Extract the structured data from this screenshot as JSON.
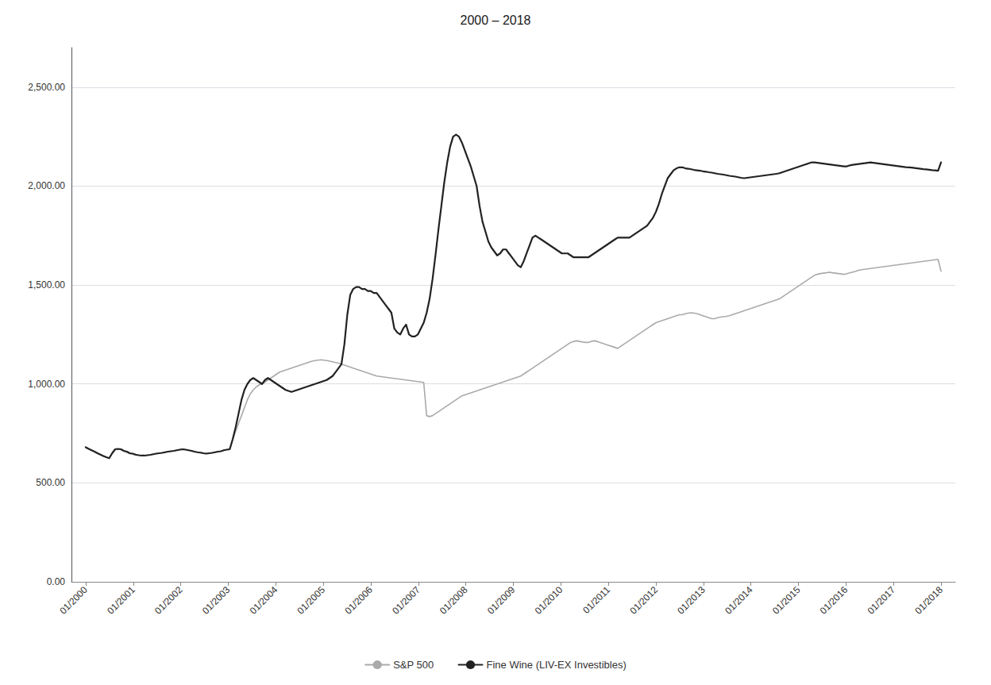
{
  "chart_data": {
    "type": "line",
    "title": "2000 – 2018",
    "x": [
      2000,
      2000.0619,
      2000.1237,
      2000.1856,
      2000.2474,
      2000.3093,
      2000.3711,
      2000.433,
      2000.4948,
      2000.5567,
      2000.6186,
      2000.6804,
      2000.7423,
      2000.8041,
      2000.866,
      2000.9278,
      2000.9897,
      2001.0515,
      2001.1134,
      2001.1753,
      2001.2371,
      2001.299,
      2001.3608,
      2001.4227,
      2001.4845,
      2001.5464,
      2001.6082,
      2001.6701,
      2001.732,
      2001.7938,
      2001.8557,
      2001.9175,
      2001.9794,
      2002.0412,
      2002.1031,
      2002.1649,
      2002.2268,
      2002.2887,
      2002.3505,
      2002.4124,
      2002.4742,
      2002.5361,
      2002.5979,
      2002.6598,
      2002.7216,
      2002.7835,
      2002.8454,
      2002.9072,
      2002.9691,
      2003.0309,
      2003.0928,
      2003.1546,
      2003.2165,
      2003.2784,
      2003.3402,
      2003.4021,
      2003.4639,
      2003.5258,
      2003.5876,
      2003.6495,
      2003.7113,
      2003.7732,
      2003.8351,
      2003.8969,
      2003.9588,
      2004.0206,
      2004.0825,
      2004.1443,
      2004.2062,
      2004.268,
      2004.3299,
      2004.3918,
      2004.4536,
      2004.5155,
      2004.5773,
      2004.6392,
      2004.701,
      2004.7629,
      2004.8247,
      2004.8866,
      2004.9485,
      2005.0103,
      2005.0722,
      2005.134,
      2005.1959,
      2005.2577,
      2005.3196,
      2005.3814,
      2005.4433,
      2005.5052,
      2005.567,
      2005.6289,
      2005.6907,
      2005.7526,
      2005.8144,
      2005.8763,
      2005.9381,
      2006,
      2006.0619,
      2006.1237,
      2006.1856,
      2006.2474,
      2006.3093,
      2006.3711,
      2006.433,
      2006.4948,
      2006.5567,
      2006.6186,
      2006.6804,
      2006.7423,
      2006.8041,
      2006.866,
      2006.9278,
      2006.9897,
      2007.0515,
      2007.1134,
      2007.1753,
      2007.2371,
      2007.299,
      2007.3608,
      2007.4227,
      2007.4845,
      2007.5464,
      2007.6082,
      2007.6701,
      2007.732,
      2007.7938,
      2007.8557,
      2007.9175,
      2007.9794,
      2008.0412,
      2008.1031,
      2008.1649,
      2008.2268,
      2008.2887,
      2008.3505,
      2008.4124,
      2008.4742,
      2008.5361,
      2008.5979,
      2008.6598,
      2008.7216,
      2008.7835,
      2008.8454,
      2008.9072,
      2008.9691,
      2009.0309,
      2009.0928,
      2009.1546,
      2009.2165,
      2009.2784,
      2009.3402,
      2009.4021,
      2009.4639,
      2009.5258,
      2009.5876,
      2009.6495,
      2009.7113,
      2009.7732,
      2009.8351,
      2009.8969,
      2009.9588,
      2010.0206,
      2010.0825,
      2010.1443,
      2010.2062,
      2010.268,
      2010.3299,
      2010.3918,
      2010.4536,
      2010.5155,
      2010.5773,
      2010.6392,
      2010.701,
      2010.7629,
      2010.8247,
      2010.8866,
      2010.9485,
      2011.0103,
      2011.0722,
      2011.134,
      2011.1959,
      2011.2577,
      2011.3196,
      2011.3814,
      2011.4433,
      2011.5052,
      2011.567,
      2011.6289,
      2011.6907,
      2011.7526,
      2011.8144,
      2011.8763,
      2011.9381,
      2012,
      2012.0619,
      2012.1237,
      2012.1856,
      2012.2474,
      2012.3093,
      2012.3711,
      2012.433,
      2012.4948,
      2012.5567,
      2012.6186,
      2012.6804,
      2012.7423,
      2012.8041,
      2012.866,
      2012.9278,
      2012.9897,
      2013.0515,
      2013.1134,
      2013.1753,
      2013.2371,
      2013.299,
      2013.3608,
      2013.4227,
      2013.4845,
      2013.5464,
      2013.6082,
      2013.6701,
      2013.732,
      2013.7938,
      2013.8557,
      2013.9175,
      2013.9794,
      2014.0412,
      2014.1031,
      2014.1649,
      2014.2268,
      2014.2887,
      2014.3505,
      2014.4124,
      2014.4742,
      2014.5361,
      2014.5979,
      2014.6598,
      2014.7216,
      2014.7835,
      2014.8454,
      2014.9072,
      2014.9691,
      2015.0309,
      2015.0928,
      2015.1546,
      2015.2165,
      2015.2784,
      2015.3402,
      2015.4021,
      2015.4639,
      2015.5258,
      2015.5876,
      2015.6495,
      2015.7113,
      2015.7732,
      2015.8351,
      2015.8969,
      2015.9588,
      2016.0206,
      2016.0825,
      2016.1443,
      2016.2062,
      2016.268,
      2016.3299,
      2016.3918,
      2016.4536,
      2016.5155,
      2016.5773,
      2016.6392,
      2016.701,
      2016.7629,
      2016.8247,
      2016.8866,
      2016.9485,
      2017.0103,
      2017.0722,
      2017.134,
      2017.1959,
      2017.2577,
      2017.3196,
      2017.3814,
      2017.4433,
      2017.5052,
      2017.567,
      2017.6289,
      2017.6907,
      2017.7526,
      2017.8144,
      2017.8763,
      2017.9381,
      2018
    ],
    "xlim": [
      1999.7,
      2018.3
    ],
    "xticks": [
      {
        "value": 2000,
        "label": "01/2000"
      },
      {
        "value": 2001,
        "label": "01/2001"
      },
      {
        "value": 2002,
        "label": "01/2002"
      },
      {
        "value": 2003,
        "label": "01/2003"
      },
      {
        "value": 2004,
        "label": "01/2004"
      },
      {
        "value": 2005,
        "label": "01/2005"
      },
      {
        "value": 2006,
        "label": "01/2006"
      },
      {
        "value": 2007,
        "label": "01/2007"
      },
      {
        "value": 2008,
        "label": "01/2008"
      },
      {
        "value": 2009,
        "label": "01/2009"
      },
      {
        "value": 2010,
        "label": "01/2010"
      },
      {
        "value": 2011,
        "label": "01/2011"
      },
      {
        "value": 2012,
        "label": "01/2012"
      },
      {
        "value": 2013,
        "label": "01/2013"
      },
      {
        "value": 2014,
        "label": "01/2014"
      },
      {
        "value": 2015,
        "label": "01/2015"
      },
      {
        "value": 2016,
        "label": "01/2016"
      },
      {
        "value": 2017,
        "label": "01/2017"
      },
      {
        "value": 2018,
        "label": "01/2018"
      }
    ],
    "ylim": [
      0,
      2700
    ],
    "yticks": [
      {
        "value": 0,
        "label": "0.00"
      },
      {
        "value": 500,
        "label": "500.00"
      },
      {
        "value": 1000,
        "label": "1,000.00"
      },
      {
        "value": 1500,
        "label": "1,500.00"
      },
      {
        "value": 2000,
        "label": "2,000.00"
      },
      {
        "value": 2500,
        "label": "2,500.00"
      }
    ],
    "grid": true,
    "legend": "bottom",
    "series": [
      {
        "name": "S&P 500",
        "color": "#aaaaaa",
        "values": [
          680,
          672,
          665,
          658,
          650,
          643,
          636,
          630,
          625,
          650,
          668,
          670,
          668,
          660,
          655,
          648,
          645,
          640,
          640,
          638,
          638,
          640,
          642,
          645,
          648,
          650,
          652,
          655,
          658,
          660,
          662,
          665,
          668,
          670,
          668,
          665,
          662,
          658,
          655,
          653,
          650,
          648,
          650,
          652,
          655,
          658,
          660,
          665,
          668,
          670,
          720,
          760,
          800,
          840,
          880,
          920,
          950,
          970,
          985,
          995,
          1000,
          1010,
          1020,
          1030,
          1040,
          1050,
          1060,
          1065,
          1070,
          1075,
          1080,
          1085,
          1090,
          1095,
          1100,
          1105,
          1110,
          1115,
          1118,
          1120,
          1122,
          1120,
          1118,
          1115,
          1112,
          1108,
          1105,
          1100,
          1095,
          1090,
          1085,
          1080,
          1075,
          1070,
          1065,
          1060,
          1055,
          1050,
          1045,
          1040,
          1038,
          1036,
          1034,
          1032,
          1030,
          1028,
          1026,
          1024,
          1022,
          1020,
          1018,
          1016,
          1014,
          1012,
          1010,
          1008,
          840,
          835,
          840,
          850,
          860,
          870,
          880,
          890,
          900,
          910,
          920,
          930,
          940,
          945,
          950,
          955,
          960,
          965,
          970,
          975,
          980,
          985,
          990,
          995,
          1000,
          1005,
          1010,
          1015,
          1020,
          1025,
          1030,
          1035,
          1040,
          1050,
          1060,
          1070,
          1080,
          1090,
          1100,
          1110,
          1120,
          1130,
          1140,
          1150,
          1160,
          1170,
          1180,
          1190,
          1200,
          1210,
          1215,
          1218,
          1215,
          1212,
          1210,
          1210,
          1215,
          1218,
          1215,
          1210,
          1205,
          1200,
          1195,
          1190,
          1185,
          1180,
          1190,
          1200,
          1210,
          1220,
          1230,
          1240,
          1250,
          1260,
          1270,
          1280,
          1290,
          1300,
          1310,
          1315,
          1320,
          1325,
          1330,
          1335,
          1340,
          1345,
          1350,
          1350,
          1355,
          1358,
          1360,
          1358,
          1355,
          1350,
          1345,
          1340,
          1335,
          1330,
          1330,
          1335,
          1338,
          1340,
          1342,
          1345,
          1350,
          1355,
          1360,
          1365,
          1370,
          1375,
          1380,
          1385,
          1390,
          1395,
          1400,
          1405,
          1410,
          1415,
          1420,
          1425,
          1430,
          1440,
          1450,
          1460,
          1470,
          1480,
          1490,
          1500,
          1510,
          1520,
          1530,
          1540,
          1550,
          1555,
          1558,
          1560,
          1562,
          1565,
          1562,
          1560,
          1558,
          1556,
          1554,
          1558,
          1562,
          1566,
          1570,
          1575,
          1578,
          1580,
          1582,
          1584,
          1586,
          1588,
          1590,
          1592,
          1594,
          1596,
          1598,
          1600,
          1602,
          1604,
          1606,
          1608,
          1610,
          1612,
          1614,
          1616,
          1618,
          1620,
          1622,
          1624,
          1626,
          1628,
          1630,
          1570
        ]
      },
      {
        "name": "Fine Wine (LIV-EX Investibles)",
        "color": "#222222",
        "values": [
          680,
          672,
          665,
          658,
          650,
          643,
          636,
          630,
          625,
          650,
          670,
          672,
          670,
          662,
          658,
          650,
          648,
          643,
          640,
          638,
          638,
          640,
          642,
          645,
          648,
          650,
          652,
          655,
          658,
          660,
          662,
          665,
          668,
          670,
          668,
          665,
          662,
          658,
          655,
          653,
          650,
          648,
          650,
          652,
          655,
          658,
          660,
          665,
          668,
          670,
          720,
          780,
          850,
          920,
          970,
          1000,
          1020,
          1030,
          1020,
          1010,
          1000,
          1020,
          1030,
          1020,
          1010,
          1000,
          990,
          980,
          970,
          965,
          960,
          965,
          970,
          975,
          980,
          985,
          990,
          995,
          1000,
          1005,
          1010,
          1015,
          1020,
          1030,
          1040,
          1060,
          1080,
          1100,
          1200,
          1350,
          1450,
          1480,
          1490,
          1490,
          1480,
          1480,
          1470,
          1470,
          1460,
          1460,
          1440,
          1420,
          1400,
          1380,
          1360,
          1280,
          1260,
          1250,
          1280,
          1300,
          1250,
          1240,
          1240,
          1250,
          1280,
          1310,
          1360,
          1430,
          1530,
          1650,
          1780,
          1900,
          2020,
          2120,
          2200,
          2250,
          2260,
          2250,
          2220,
          2180,
          2140,
          2100,
          2050,
          2000,
          1900,
          1820,
          1770,
          1720,
          1690,
          1670,
          1650,
          1660,
          1680,
          1680,
          1660,
          1640,
          1620,
          1600,
          1590,
          1620,
          1660,
          1700,
          1740,
          1750,
          1740,
          1730,
          1720,
          1710,
          1700,
          1690,
          1680,
          1670,
          1660,
          1660,
          1660,
          1650,
          1640,
          1640,
          1640,
          1640,
          1640,
          1640,
          1650,
          1660,
          1670,
          1680,
          1690,
          1700,
          1710,
          1720,
          1730,
          1740,
          1740,
          1740,
          1740,
          1740,
          1750,
          1760,
          1770,
          1780,
          1790,
          1800,
          1820,
          1840,
          1870,
          1910,
          1960,
          2000,
          2040,
          2060,
          2080,
          2090,
          2095,
          2095,
          2090,
          2088,
          2085,
          2082,
          2080,
          2078,
          2075,
          2073,
          2070,
          2068,
          2065,
          2062,
          2060,
          2058,
          2055,
          2052,
          2050,
          2048,
          2045,
          2042,
          2040,
          2042,
          2044,
          2046,
          2048,
          2050,
          2052,
          2054,
          2056,
          2058,
          2060,
          2062,
          2065,
          2070,
          2075,
          2080,
          2085,
          2090,
          2095,
          2100,
          2105,
          2110,
          2115,
          2120,
          2120,
          2118,
          2116,
          2114,
          2112,
          2110,
          2108,
          2106,
          2104,
          2102,
          2100,
          2100,
          2105,
          2108,
          2110,
          2112,
          2114,
          2116,
          2118,
          2120,
          2118,
          2116,
          2114,
          2112,
          2110,
          2108,
          2106,
          2104,
          2102,
          2100,
          2098,
          2096,
          2095,
          2094,
          2092,
          2090,
          2088,
          2086,
          2085,
          2083,
          2081,
          2080,
          2078,
          2120
        ]
      }
    ]
  }
}
